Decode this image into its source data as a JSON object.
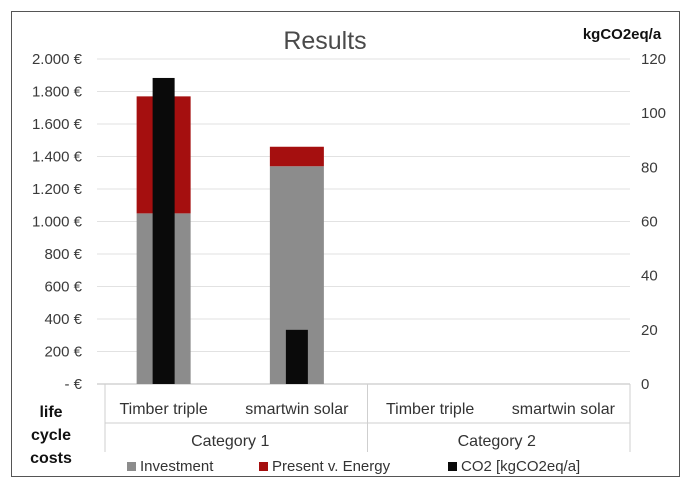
{
  "chart_data": {
    "type": "bar",
    "title": "Results",
    "y2_unit": "kgCO2eq/a",
    "ylabel": [
      "life",
      "cycle",
      "costs"
    ],
    "categories": [
      "Timber triple",
      "smartwin solar",
      "Timber triple",
      "smartwin solar"
    ],
    "groups": [
      {
        "name": "Category 1",
        "categories": [
          0,
          1
        ]
      },
      {
        "name": "Category 2",
        "categories": [
          2,
          3
        ]
      }
    ],
    "yticks": [
      "2.000 €",
      "1.800 €",
      "1.600 €",
      "1.400 €",
      "1.200 €",
      "1.000 €",
      "800 €",
      "600 €",
      "400 €",
      "200 €",
      "-  €"
    ],
    "y2ticks": [
      "120",
      "100",
      "80",
      "60",
      "40",
      "20",
      "0"
    ],
    "ylim": [
      0,
      2000
    ],
    "y2lim": [
      0,
      120
    ],
    "stacked": true,
    "series": [
      {
        "name": "Investment",
        "axis": "left",
        "color": "#8c8c8c",
        "values": [
          1050,
          1340,
          0,
          0
        ]
      },
      {
        "name": "Present v. Energy",
        "axis": "left",
        "color": "#a50f0f",
        "values": [
          720,
          120,
          0,
          0
        ]
      },
      {
        "name": "CO2 [kgCO2eq/a]",
        "axis": "right",
        "color": "#0a0a0a",
        "values": [
          113,
          20,
          0,
          0
        ]
      }
    ],
    "grid": true,
    "legend_position": "bottom"
  }
}
